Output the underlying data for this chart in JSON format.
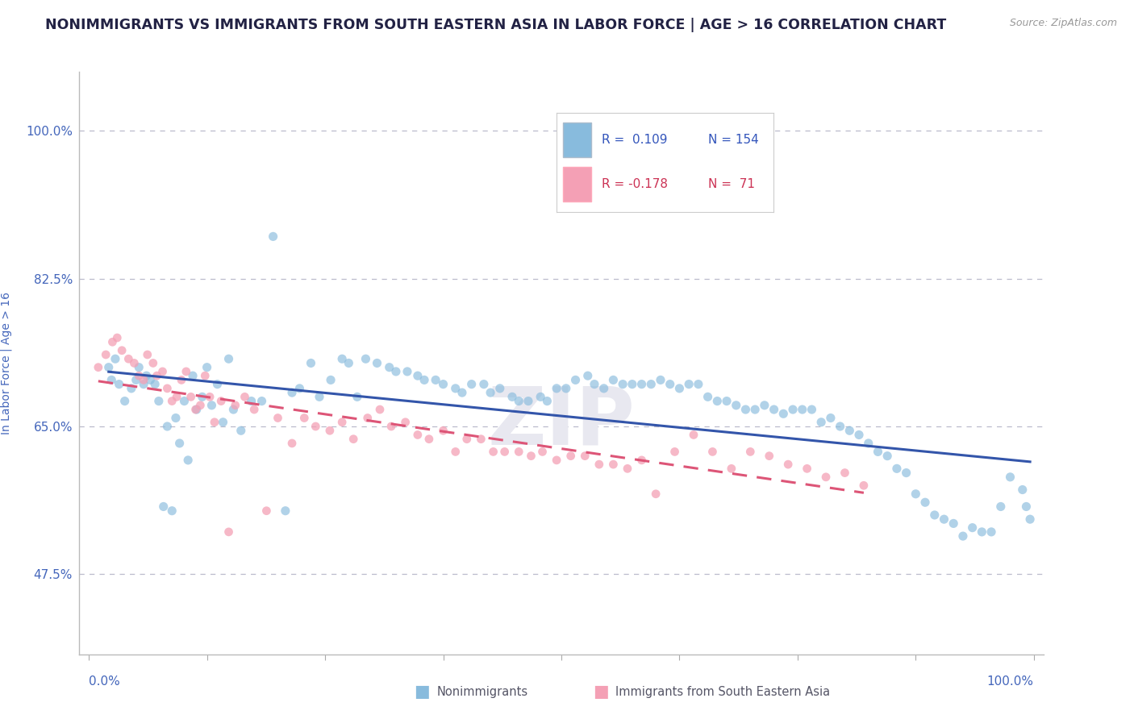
{
  "title": "NONIMMIGRANTS VS IMMIGRANTS FROM SOUTH EASTERN ASIA IN LABOR FORCE | AGE > 16 CORRELATION CHART",
  "source": "Source: ZipAtlas.com",
  "ylabel": "In Labor Force | Age > 16",
  "xlim": [
    -1.0,
    101.0
  ],
  "ylim": [
    38.0,
    107.0
  ],
  "yticks": [
    47.5,
    65.0,
    82.5,
    100.0
  ],
  "ytick_labels": [
    "47.5%",
    "65.0%",
    "82.5%",
    "100.0%"
  ],
  "title_fontsize": 12.5,
  "axis_label_fontsize": 10,
  "tick_fontsize": 11,
  "color_nonimm": "#88bbdd",
  "color_imm": "#f4a0b5",
  "color_line_nonimm": "#3355aa",
  "color_line_imm": "#dd5577",
  "title_color": "#222244",
  "axis_color": "#4466bb",
  "watermark": "ZIP",
  "nonimm_x": [
    2.1,
    2.4,
    2.8,
    3.2,
    3.8,
    4.5,
    5.0,
    5.3,
    5.8,
    6.1,
    6.5,
    7.0,
    7.4,
    7.9,
    8.3,
    8.8,
    9.2,
    9.6,
    10.1,
    10.5,
    11.0,
    11.4,
    12.0,
    12.5,
    13.0,
    13.6,
    14.2,
    14.8,
    15.3,
    16.1,
    17.2,
    18.3,
    19.5,
    20.8,
    21.5,
    22.3,
    23.5,
    24.4,
    25.6,
    26.8,
    27.5,
    28.4,
    29.3,
    30.5,
    31.8,
    32.5,
    33.7,
    34.8,
    35.5,
    36.7,
    37.5,
    38.8,
    39.5,
    40.5,
    41.8,
    42.5,
    43.5,
    44.8,
    45.5,
    46.5,
    47.8,
    48.5,
    49.5,
    50.5,
    51.5,
    52.8,
    53.5,
    54.5,
    55.5,
    56.5,
    57.5,
    58.5,
    59.5,
    60.5,
    61.5,
    62.5,
    63.5,
    64.5,
    65.5,
    66.5,
    67.5,
    68.5,
    69.5,
    70.5,
    71.5,
    72.5,
    73.5,
    74.5,
    75.5,
    76.5,
    77.5,
    78.5,
    79.5,
    80.5,
    81.5,
    82.5,
    83.5,
    84.5,
    85.5,
    86.5,
    87.5,
    88.5,
    89.5,
    90.5,
    91.5,
    92.5,
    93.5,
    94.5,
    95.5,
    96.5,
    97.5,
    98.8,
    99.2,
    99.6
  ],
  "nonimm_y": [
    72.0,
    70.5,
    73.0,
    70.0,
    68.0,
    69.5,
    70.5,
    72.0,
    70.0,
    71.0,
    70.5,
    70.0,
    68.0,
    55.5,
    65.0,
    55.0,
    66.0,
    63.0,
    68.0,
    61.0,
    71.0,
    67.0,
    68.5,
    72.0,
    67.5,
    70.0,
    65.5,
    73.0,
    67.0,
    64.5,
    68.0,
    68.0,
    87.5,
    55.0,
    69.0,
    69.5,
    72.5,
    68.5,
    70.5,
    73.0,
    72.5,
    68.5,
    73.0,
    72.5,
    72.0,
    71.5,
    71.5,
    71.0,
    70.5,
    70.5,
    70.0,
    69.5,
    69.0,
    70.0,
    70.0,
    69.0,
    69.5,
    68.5,
    68.0,
    68.0,
    68.5,
    68.0,
    69.5,
    69.5,
    70.5,
    71.0,
    70.0,
    69.5,
    70.5,
    70.0,
    70.0,
    70.0,
    70.0,
    70.5,
    70.0,
    69.5,
    70.0,
    70.0,
    68.5,
    68.0,
    68.0,
    67.5,
    67.0,
    67.0,
    67.5,
    67.0,
    66.5,
    67.0,
    67.0,
    67.0,
    65.5,
    66.0,
    65.0,
    64.5,
    64.0,
    63.0,
    62.0,
    61.5,
    60.0,
    59.5,
    57.0,
    56.0,
    54.5,
    54.0,
    53.5,
    52.0,
    53.0,
    52.5,
    52.5,
    55.5,
    59.0,
    57.5,
    55.5,
    54.0
  ],
  "imm_x": [
    1.0,
    1.8,
    2.5,
    3.0,
    3.5,
    4.2,
    4.8,
    5.3,
    5.8,
    6.2,
    6.8,
    7.2,
    7.8,
    8.3,
    8.8,
    9.3,
    9.8,
    10.3,
    10.8,
    11.3,
    11.8,
    12.3,
    12.8,
    13.3,
    14.0,
    14.8,
    15.5,
    16.5,
    17.5,
    18.8,
    20.0,
    21.5,
    22.8,
    24.0,
    25.5,
    26.8,
    28.0,
    29.5,
    30.8,
    32.0,
    33.5,
    34.8,
    36.0,
    37.5,
    38.8,
    40.0,
    41.5,
    42.8,
    44.0,
    45.5,
    46.8,
    48.0,
    49.5,
    51.0,
    52.5,
    54.0,
    55.5,
    57.0,
    58.5,
    60.0,
    62.0,
    64.0,
    66.0,
    68.0,
    70.0,
    72.0,
    74.0,
    76.0,
    78.0,
    80.0,
    82.0
  ],
  "imm_y": [
    72.0,
    73.5,
    75.0,
    75.5,
    74.0,
    73.0,
    72.5,
    71.0,
    70.5,
    73.5,
    72.5,
    71.0,
    71.5,
    69.5,
    68.0,
    68.5,
    70.5,
    71.5,
    68.5,
    67.0,
    67.5,
    71.0,
    68.5,
    65.5,
    68.0,
    52.5,
    67.5,
    68.5,
    67.0,
    55.0,
    66.0,
    63.0,
    66.0,
    65.0,
    64.5,
    65.5,
    63.5,
    66.0,
    67.0,
    65.0,
    65.5,
    64.0,
    63.5,
    64.5,
    62.0,
    63.5,
    63.5,
    62.0,
    62.0,
    62.0,
    61.5,
    62.0,
    61.0,
    61.5,
    61.5,
    60.5,
    60.5,
    60.0,
    61.0,
    57.0,
    62.0,
    64.0,
    62.0,
    60.0,
    62.0,
    61.5,
    60.5,
    60.0,
    59.0,
    59.5,
    58.0
  ]
}
